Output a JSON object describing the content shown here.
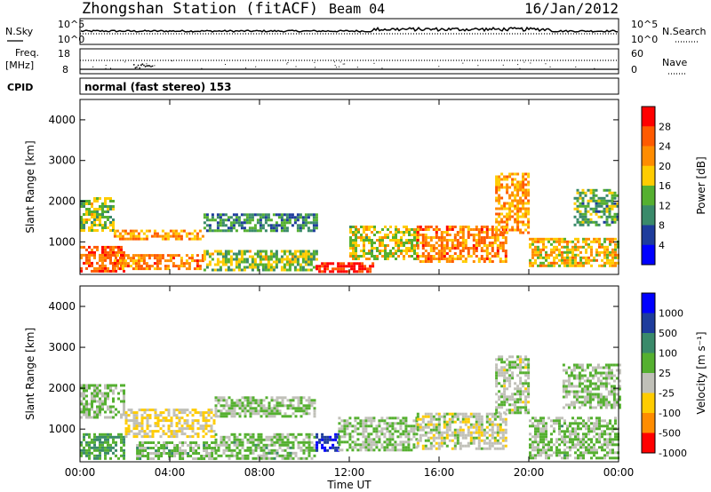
{
  "header": {
    "station": "Zhongshan Station (fitACF)",
    "beam": "Beam 04",
    "date": "16/Jan/2012"
  },
  "status_panels": {
    "nsky_label": "N.Sky",
    "nsearch_label": "N.Search",
    "noise_ticks_left": [
      "10^5",
      "10^0"
    ],
    "noise_ticks_right": [
      "10^5",
      "10^0"
    ],
    "freq_label": "Freq.",
    "freq_unit": "[MHz]",
    "freq_ticks": [
      "18",
      "8"
    ],
    "nave_label": "Nave",
    "nave_ticks": [
      "60",
      "0"
    ],
    "cpid_label": "CPID",
    "cpid_value": "normal (fast stereo) 153"
  },
  "colors": {
    "red": "#ff0000",
    "orange": "#ff8c00",
    "yellow": "#ffcc00",
    "green": "#55b030",
    "teal": "#3a8a6a",
    "navy": "#1e3c9c",
    "blue": "#0000ff",
    "gray": "#c0c0b8"
  },
  "chart_data": [
    {
      "type": "heatmap",
      "ylabel": "Slant Range [km]",
      "yticks": [
        "1000",
        "2000",
        "3000",
        "4000"
      ],
      "ylim": [
        200,
        4500
      ],
      "xlim": [
        "00:00",
        "24:00"
      ],
      "colorbar": {
        "label": "Power [dB]",
        "ticks": [
          "4",
          "8",
          "12",
          "16",
          "20",
          "24",
          "28"
        ],
        "range": [
          0,
          30
        ],
        "colors": [
          "#0000ff",
          "#1e3c9c",
          "#3a8a6a",
          "#55b030",
          "#ffcc00",
          "#ff8c00",
          "#ff5a00",
          "#ff0000"
        ]
      },
      "bands": [
        {
          "t0": 0.0,
          "t1": 1.5,
          "r0": 1300,
          "r1": 2100,
          "value": 14
        },
        {
          "t0": 0.0,
          "t1": 2.0,
          "r0": 300,
          "r1": 900,
          "value": 24
        },
        {
          "t0": 1.5,
          "t1": 5.5,
          "r0": 1100,
          "r1": 1300,
          "value": 20
        },
        {
          "t0": 1.5,
          "t1": 5.5,
          "r0": 350,
          "r1": 700,
          "value": 22
        },
        {
          "t0": 5.5,
          "t1": 10.5,
          "r0": 1300,
          "r1": 1700,
          "value": 10
        },
        {
          "t0": 5.5,
          "t1": 10.5,
          "r0": 300,
          "r1": 800,
          "value": 14
        },
        {
          "t0": 10.5,
          "t1": 13.0,
          "r0": 250,
          "r1": 500,
          "value": 28
        },
        {
          "t0": 12.0,
          "t1": 15.0,
          "r0": 600,
          "r1": 1400,
          "value": 16
        },
        {
          "t0": 15.0,
          "t1": 19.0,
          "r0": 500,
          "r1": 1400,
          "value": 22
        },
        {
          "t0": 18.5,
          "t1": 20.0,
          "r0": 1200,
          "r1": 2700,
          "value": 20
        },
        {
          "t0": 20.0,
          "t1": 24.0,
          "r0": 400,
          "r1": 1100,
          "value": 18
        },
        {
          "t0": 22.0,
          "t1": 24.0,
          "r0": 1400,
          "r1": 2300,
          "value": 12
        }
      ]
    },
    {
      "type": "heatmap",
      "ylabel": "Slant Range [km]",
      "yticks": [
        "1000",
        "2000",
        "3000",
        "4000"
      ],
      "ylim": [
        200,
        4500
      ],
      "xlim": [
        "00:00",
        "24:00"
      ],
      "xticks": [
        "00:00",
        "04:00",
        "08:00",
        "12:00",
        "16:00",
        "20:00",
        "00:00"
      ],
      "xlabel": "Time UT",
      "colorbar": {
        "label": "Velocity [m s⁻¹]",
        "ticks": [
          "1000",
          "500",
          "100",
          "25",
          "-25",
          "-100",
          "-500",
          "-1000"
        ],
        "range": [
          -1200,
          1200
        ],
        "colors": [
          "#0000ff",
          "#1e3c9c",
          "#3a8a6a",
          "#55b030",
          "#c0c0b8",
          "#ffcc00",
          "#ff8c00",
          "#ff0000"
        ]
      },
      "bands": [
        {
          "t0": 0.0,
          "t1": 2.0,
          "r0": 1300,
          "r1": 2100,
          "value": 0
        },
        {
          "t0": 0.0,
          "t1": 2.0,
          "r0": 300,
          "r1": 900,
          "value": 300
        },
        {
          "t0": 2.0,
          "t1": 6.0,
          "r0": 800,
          "r1": 1500,
          "value": -300
        },
        {
          "t0": 2.5,
          "t1": 6.0,
          "r0": 300,
          "r1": 700,
          "value": 80
        },
        {
          "t0": 6.0,
          "t1": 10.5,
          "r0": 1300,
          "r1": 1800,
          "value": 0
        },
        {
          "t0": 6.0,
          "t1": 10.5,
          "r0": 300,
          "r1": 900,
          "value": 60
        },
        {
          "t0": 10.5,
          "t1": 11.5,
          "r0": 500,
          "r1": 900,
          "value": 900
        },
        {
          "t0": 11.5,
          "t1": 15.0,
          "r0": 500,
          "r1": 1300,
          "value": 0
        },
        {
          "t0": 15.0,
          "t1": 19.0,
          "r0": 500,
          "r1": 1400,
          "value": -150
        },
        {
          "t0": 18.5,
          "t1": 20.0,
          "r0": 1400,
          "r1": 2800,
          "value": -60
        },
        {
          "t0": 20.0,
          "t1": 24.0,
          "r0": 300,
          "r1": 1300,
          "value": 60
        },
        {
          "t0": 21.5,
          "t1": 24.0,
          "r0": 1500,
          "r1": 2600,
          "value": 0
        }
      ]
    }
  ]
}
